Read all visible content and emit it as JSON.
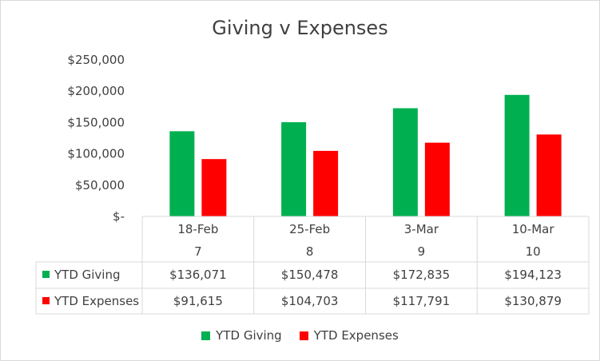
{
  "chart_data": {
    "type": "bar",
    "title": "Giving v Expenses",
    "categories": [
      "18-Feb",
      "25-Feb",
      "3-Mar",
      "10-Mar"
    ],
    "sub_categories": [
      "7",
      "8",
      "9",
      "10"
    ],
    "series": [
      {
        "name": "YTD Giving",
        "color": "#00b050",
        "values": [
          136071,
          150478,
          172835,
          194123
        ],
        "labels": [
          "$136,071",
          "$150,478",
          "$172,835",
          "$194,123"
        ]
      },
      {
        "name": "YTD Expenses",
        "color": "#ff0000",
        "values": [
          91615,
          104703,
          117791,
          130879
        ],
        "labels": [
          "$91,615",
          "$104,703",
          "$117,791",
          "$130,879"
        ]
      }
    ],
    "ylim": [
      0,
      250000
    ],
    "yticks": [
      {
        "value": 0,
        "label": "$-"
      },
      {
        "value": 50000,
        "label": "$50,000"
      },
      {
        "value": 100000,
        "label": "$100,000"
      },
      {
        "value": 150000,
        "label": "$150,000"
      },
      {
        "value": 200000,
        "label": "$200,000"
      },
      {
        "value": 250000,
        "label": "$250,000"
      }
    ],
    "grid": false,
    "data_table": true,
    "legend_position": "bottom"
  }
}
